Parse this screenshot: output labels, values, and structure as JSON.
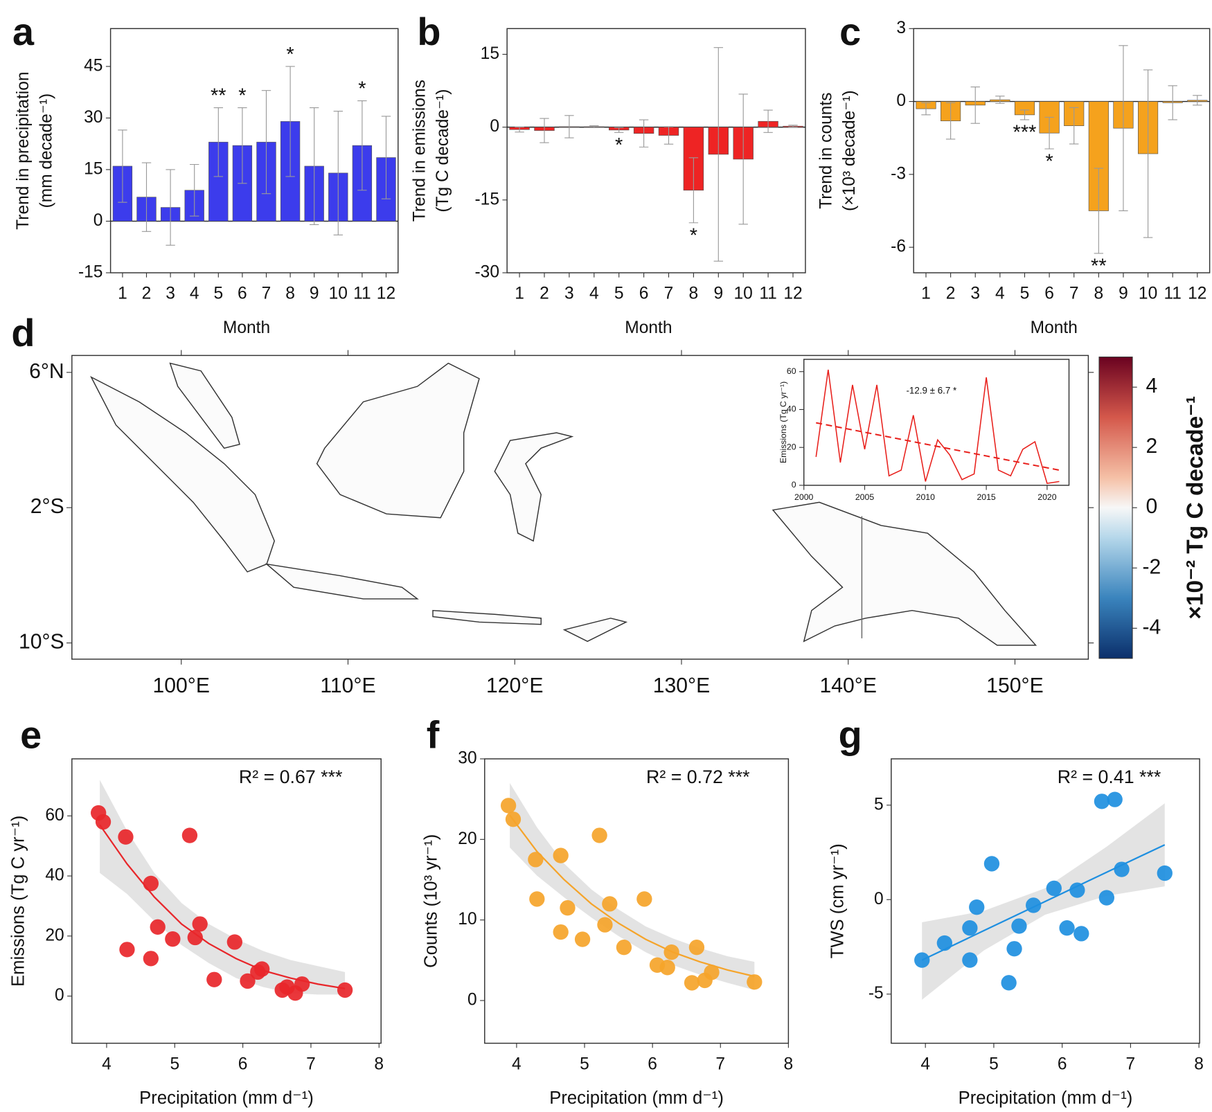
{
  "chart_data": [
    {
      "type": "bar",
      "panel": "a",
      "categories": [
        "1",
        "2",
        "3",
        "4",
        "5",
        "6",
        "7",
        "8",
        "9",
        "10",
        "11",
        "12"
      ],
      "values": [
        16,
        7,
        4,
        9,
        23,
        22,
        23,
        29,
        16,
        14,
        22,
        18.5
      ],
      "errors": [
        10.5,
        10,
        11,
        7.5,
        10,
        11,
        15,
        16,
        17,
        18,
        13,
        12
      ],
      "significance": [
        null,
        null,
        null,
        null,
        "**",
        "*",
        null,
        "*",
        null,
        null,
        "*",
        null
      ],
      "color": "#3c3cec",
      "ylim": [
        -15,
        56
      ],
      "yticks": [
        -15,
        0,
        15,
        30,
        45
      ],
      "ylabel": [
        "Trend in precipitation",
        "(mm decade⁻¹)"
      ],
      "xlabel": "Month"
    },
    {
      "type": "bar",
      "panel": "b",
      "categories": [
        "1",
        "2",
        "3",
        "4",
        "5",
        "6",
        "7",
        "8",
        "9",
        "10",
        "11",
        "12"
      ],
      "values": [
        -0.5,
        -0.7,
        0.1,
        0.1,
        -0.6,
        -1.3,
        -1.7,
        -13,
        -5.6,
        -6.6,
        1.2,
        0.2
      ],
      "errors": [
        0.5,
        2.5,
        2.3,
        0.2,
        0.5,
        2.8,
        1.8,
        6.7,
        22,
        13.4,
        2.3,
        0.2
      ],
      "significance": [
        null,
        null,
        null,
        null,
        "*",
        null,
        null,
        "*",
        null,
        null,
        null,
        null
      ],
      "color": "#ee2424",
      "ylim": [
        -30,
        20.3
      ],
      "yticks": [
        -30,
        -15,
        0,
        15
      ],
      "ylabel": [
        "Trend in emissions",
        "(Tg C decade⁻¹)"
      ],
      "xlabel": "Month"
    },
    {
      "type": "bar",
      "panel": "c",
      "categories": [
        "1",
        "2",
        "3",
        "4",
        "5",
        "6",
        "7",
        "8",
        "9",
        "10",
        "11",
        "12"
      ],
      "values": [
        -0.3,
        -0.8,
        -0.15,
        0.07,
        -0.55,
        -1.3,
        -1.0,
        -4.5,
        -1.1,
        -2.15,
        -0.05,
        0.05
      ],
      "errors": [
        0.25,
        0.75,
        0.75,
        0.15,
        0.2,
        0.65,
        0.75,
        1.75,
        3.4,
        3.45,
        0.7,
        0.2
      ],
      "significance": [
        null,
        null,
        null,
        null,
        "***",
        "*",
        null,
        "**",
        null,
        null,
        null,
        null
      ],
      "color": "#f5a21d",
      "ylim": [
        -7.05,
        3
      ],
      "yticks": [
        -6,
        -3,
        0,
        3
      ],
      "ylabel": [
        "Trend in counts",
        "(×10³ decade⁻¹)"
      ],
      "xlabel": "Month"
    },
    {
      "type": "map",
      "panel": "d",
      "xlim": [
        93.44,
        154.4
      ],
      "ylim": [
        -10.96,
        7.0
      ],
      "xticks": [
        {
          "value": 100,
          "label": "100°E"
        },
        {
          "value": 110,
          "label": "110°E"
        },
        {
          "value": 120,
          "label": "120°E"
        },
        {
          "value": 130,
          "label": "130°E"
        },
        {
          "value": 140,
          "label": "140°E"
        },
        {
          "value": 150,
          "label": "150°E"
        }
      ],
      "yticks": [
        {
          "value": 6,
          "label": "6°N"
        },
        {
          "value": -2,
          "label": "2°S"
        },
        {
          "value": -10,
          "label": "10°S"
        }
      ],
      "colorbar": {
        "label": "×10⁻² Tg C decade⁻¹",
        "lim": [
          -5,
          5
        ],
        "ticks": [
          -4,
          -2,
          0,
          2,
          4
        ]
      }
    },
    {
      "type": "line",
      "x": [
        2001,
        2002,
        2003,
        2004,
        2005,
        2006,
        2007,
        2008,
        2009,
        2010,
        2011,
        2012,
        2013,
        2014,
        2015,
        2016,
        2017,
        2018,
        2019,
        2020,
        2021
      ],
      "values": [
        15,
        61,
        12,
        53,
        19,
        53,
        5,
        8,
        37,
        2,
        24,
        16,
        3,
        6,
        57,
        8,
        5,
        19,
        23,
        1,
        2
      ],
      "trend": {
        "x": [
          2001,
          2021
        ],
        "values": [
          33,
          8
        ]
      },
      "annotation": "-12.9 ± 6.7 *",
      "color": "#e8201c",
      "xlim": [
        2000,
        2021.8
      ],
      "ylim": [
        0,
        66.5
      ],
      "xticks": [
        2000,
        2005,
        2010,
        2015,
        2020
      ],
      "yticks": [
        0,
        20,
        40,
        60
      ],
      "ylabel": "Emissions (Tg C yr⁻¹)"
    },
    {
      "type": "scatter",
      "panel": "e",
      "annotation": "R² = 0.67 ***",
      "color": "#e8262a",
      "x": [
        3.88,
        3.95,
        4.28,
        4.3,
        4.65,
        4.65,
        4.75,
        4.97,
        5.22,
        5.3,
        5.37,
        5.58,
        5.88,
        6.07,
        6.22,
        6.28,
        6.58,
        6.65,
        6.77,
        6.87,
        7.5
      ],
      "values": [
        61,
        58,
        53,
        15.5,
        37.5,
        12.5,
        23,
        19,
        53.5,
        19.5,
        24,
        5.5,
        18,
        5,
        8,
        9,
        2,
        3,
        1,
        4,
        2
      ],
      "fit": {
        "x": [
          3.9,
          4.3,
          4.7,
          5.1,
          5.5,
          5.9,
          6.3,
          6.7,
          7.1,
          7.5
        ],
        "values": [
          57,
          44,
          33,
          24,
          17.5,
          12.5,
          8.5,
          6,
          4,
          2.5
        ],
        "lower": [
          41,
          34,
          25,
          17,
          11,
          6,
          3,
          1,
          0.5,
          0.5
        ],
        "upper": [
          72,
          55,
          41,
          31,
          24,
          19,
          15,
          12,
          10,
          8
        ]
      },
      "xlim": [
        3.49,
        8.03
      ],
      "ylim": [
        -15.7,
        79
      ],
      "xticks": [
        4,
        5,
        6,
        7,
        8
      ],
      "yticks": [
        0,
        20,
        40,
        60
      ],
      "xlabel": "Precipitation (mm d⁻¹)",
      "ylabel": "Emissions (Tg C yr⁻¹)"
    },
    {
      "type": "scatter",
      "panel": "f",
      "annotation": "R² = 0.72 ***",
      "color": "#f5a42a",
      "x": [
        3.88,
        3.95,
        4.28,
        4.3,
        4.65,
        4.65,
        4.75,
        4.97,
        5.22,
        5.3,
        5.37,
        5.58,
        5.88,
        6.07,
        6.22,
        6.28,
        6.58,
        6.65,
        6.77,
        6.87,
        7.5
      ],
      "values": [
        24.2,
        22.5,
        17.5,
        12.6,
        18,
        8.5,
        11.5,
        7.6,
        20.5,
        9.4,
        12,
        6.6,
        12.6,
        4.4,
        4.1,
        6,
        2.2,
        6.6,
        2.5,
        3.5,
        2.3
      ],
      "fit": {
        "x": [
          3.9,
          4.3,
          4.7,
          5.1,
          5.5,
          5.9,
          6.3,
          6.7,
          7.1,
          7.5
        ],
        "values": [
          23,
          18.5,
          15,
          12,
          9.6,
          7.6,
          6,
          4.8,
          3.8,
          3
        ],
        "lower": [
          19,
          15.5,
          12.8,
          10.3,
          8,
          6,
          4.4,
          3.2,
          2.2,
          1.3
        ],
        "upper": [
          27,
          21.5,
          17,
          13.8,
          11.3,
          9.2,
          7.7,
          6.5,
          5.5,
          4.8
        ]
      },
      "xlim": [
        3.53,
        8
      ],
      "ylim": [
        -5.3,
        30
      ],
      "xticks": [
        4,
        5,
        6,
        7,
        8
      ],
      "yticks": [
        0,
        10,
        20,
        30
      ],
      "xlabel": "Precipitation (mm d⁻¹)",
      "ylabel": "Counts (10³ yr⁻¹)"
    },
    {
      "type": "scatter",
      "panel": "g",
      "annotation": "R² = 0.41 ***",
      "color": "#1e8fe0",
      "x": [
        3.95,
        4.28,
        4.65,
        4.65,
        4.75,
        4.97,
        5.22,
        5.3,
        5.37,
        5.58,
        5.88,
        6.07,
        6.22,
        6.28,
        6.58,
        6.65,
        6.77,
        6.87,
        7.5
      ],
      "values": [
        -3.2,
        -2.3,
        -3.2,
        -1.5,
        -0.4,
        1.9,
        -4.4,
        -2.6,
        -1.4,
        -0.3,
        0.6,
        -1.5,
        0.5,
        -1.8,
        5.2,
        0.1,
        5.3,
        1.6,
        1.4
      ],
      "fit": {
        "x": [
          3.95,
          4.85,
          5.75,
          6.65,
          7.5
        ],
        "values": [
          -3.2,
          -1.65,
          -0.1,
          1.45,
          2.9
        ],
        "lower": [
          -5.3,
          -2.7,
          -0.8,
          0.2,
          0.7
        ],
        "upper": [
          -1.2,
          -0.6,
          0.6,
          2.8,
          5.1
        ]
      },
      "xlim": [
        3.5,
        8.01
      ],
      "ylim": [
        -7.6,
        7.45
      ],
      "xticks": [
        4,
        5,
        6,
        7,
        8
      ],
      "yticks": [
        -5,
        0,
        5
      ],
      "xlabel": "Precipitation (mm d⁻¹)",
      "ylabel": "TWS (cm yr⁻¹)"
    }
  ]
}
